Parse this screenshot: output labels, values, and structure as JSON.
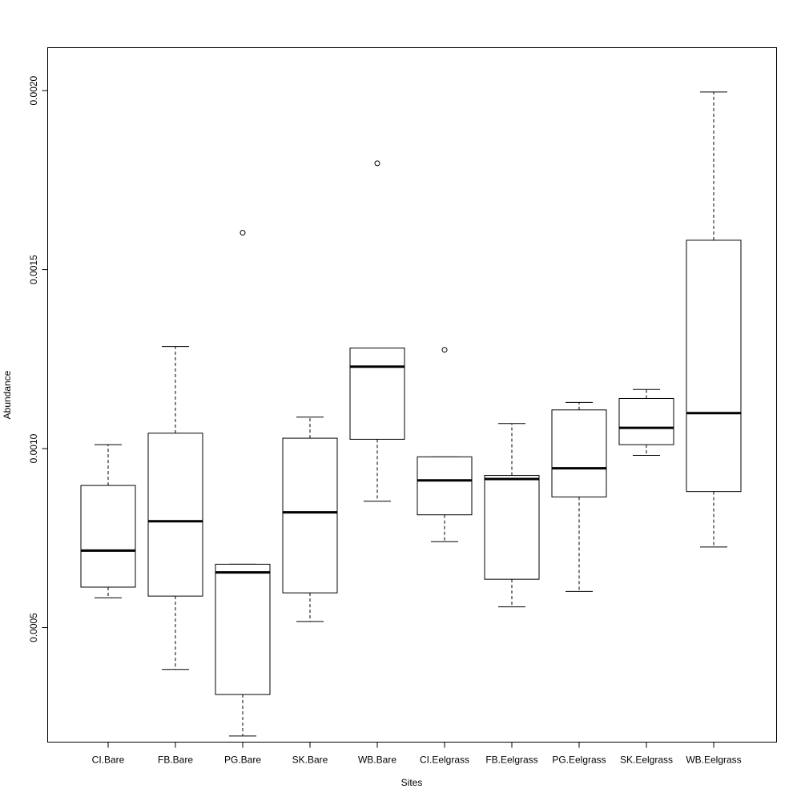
{
  "chart_data": {
    "type": "boxplot",
    "xlabel": "Sites",
    "ylabel": "Abundance",
    "ylim": [
      0.00018,
      0.00212
    ],
    "yticks": [
      0.0005,
      0.001,
      0.0015,
      0.002
    ],
    "ytick_labels": [
      "0.0005",
      "0.0010",
      "0.0015",
      "0.0020"
    ],
    "grid": false,
    "legend": "none",
    "categories": [
      "CI.Bare",
      "FB.Bare",
      "PG.Bare",
      "SK.Bare",
      "WB.Bare",
      "CI.Eelgrass",
      "FB.Eelgrass",
      "PG.Eelgrass",
      "SK.Eelgrass",
      "WB.Eelgrass"
    ],
    "boxes": [
      {
        "whisker_low": 0.000583,
        "q1": 0.000613,
        "median": 0.000715,
        "q3": 0.000897,
        "whisker_high": 0.001011,
        "outliers": []
      },
      {
        "whisker_low": 0.000383,
        "q1": 0.000588,
        "median": 0.000797,
        "q3": 0.001043,
        "whisker_high": 0.001285,
        "outliers": []
      },
      {
        "whisker_low": 0.000197,
        "q1": 0.000313,
        "median": 0.000654,
        "q3": 0.000677,
        "whisker_high": 0.000677,
        "outliers": [
          0.001603
        ]
      },
      {
        "whisker_low": 0.000517,
        "q1": 0.000597,
        "median": 0.000822,
        "q3": 0.001029,
        "whisker_high": 0.001088,
        "outliers": []
      },
      {
        "whisker_low": 0.000853,
        "q1": 0.001026,
        "median": 0.001229,
        "q3": 0.001281,
        "whisker_high": 0.001281,
        "outliers": [
          0.001797
        ]
      },
      {
        "whisker_low": 0.00074,
        "q1": 0.000815,
        "median": 0.000911,
        "q3": 0.000977,
        "whisker_high": 0.000977,
        "outliers": [
          0.001276
        ]
      },
      {
        "whisker_low": 0.000558,
        "q1": 0.000635,
        "median": 0.000915,
        "q3": 0.000925,
        "whisker_high": 0.00107,
        "outliers": []
      },
      {
        "whisker_low": 0.000601,
        "q1": 0.000865,
        "median": 0.000945,
        "q3": 0.001108,
        "whisker_high": 0.001129,
        "outliers": []
      },
      {
        "whisker_low": 0.000981,
        "q1": 0.001011,
        "median": 0.001058,
        "q3": 0.00114,
        "whisker_high": 0.001165,
        "outliers": []
      },
      {
        "whisker_low": 0.000725,
        "q1": 0.00088,
        "median": 0.001099,
        "q3": 0.001582,
        "whisker_high": 0.001996,
        "outliers": []
      }
    ]
  }
}
